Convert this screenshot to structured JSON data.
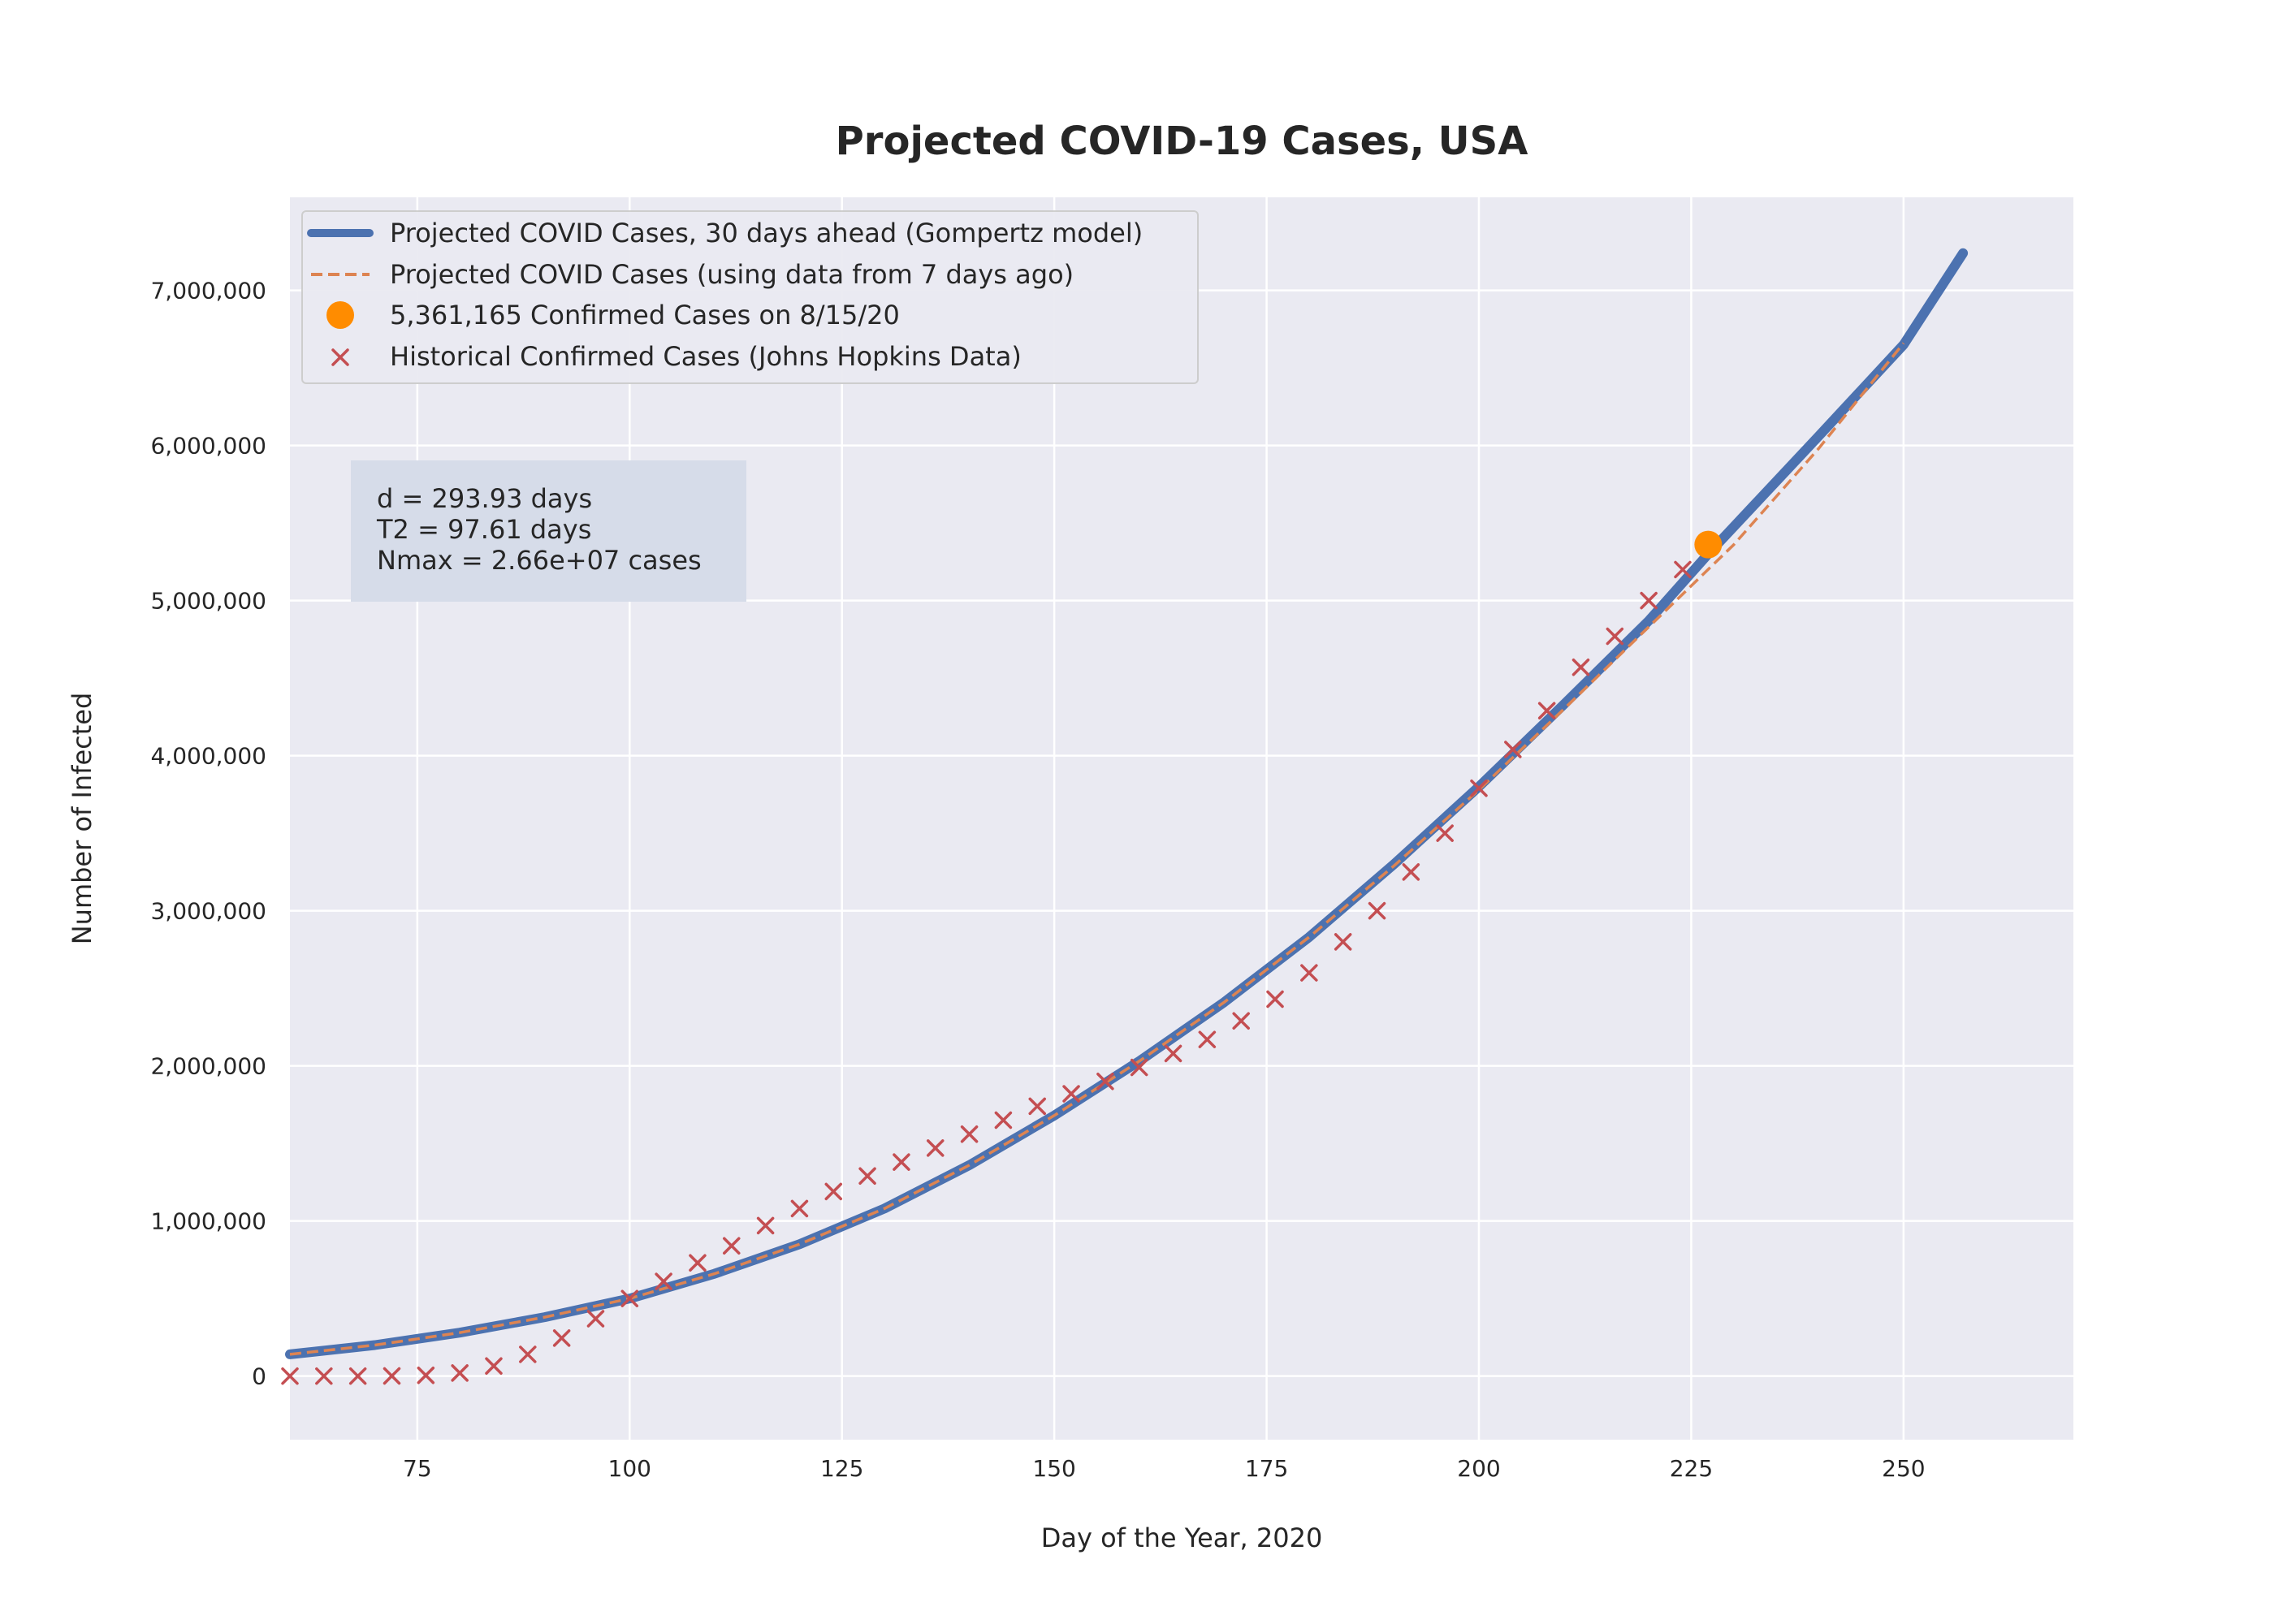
{
  "chart_data": {
    "type": "line",
    "title": "Projected COVID-19 Cases, USA",
    "xlabel": "Day of the Year, 2020",
    "ylabel": "Number of Infected",
    "xlim": [
      60,
      270
    ],
    "ylim": [
      -410000,
      7600000
    ],
    "x_ticks": [
      75,
      100,
      125,
      150,
      175,
      200,
      225,
      250
    ],
    "x_tick_labels": [
      "75",
      "100",
      "125",
      "150",
      "175",
      "200",
      "225",
      "250"
    ],
    "y_ticks": [
      0,
      1000000,
      2000000,
      3000000,
      4000000,
      5000000,
      6000000,
      7000000
    ],
    "y_tick_labels": [
      "0",
      "1,000,000",
      "2,000,000",
      "3,000,000",
      "4,000,000",
      "5,000,000",
      "6,000,000",
      "7,000,000"
    ],
    "grid": true,
    "legend_position": "top-left",
    "colors": {
      "background": "#eaeaf2",
      "grid": "#ffffff",
      "projection": "#4c72b0",
      "projection_old": "#dd8452",
      "current_point": "#ff8c00",
      "historical": "#c44e52",
      "stats_box": "#d6dce9"
    },
    "stats_box": {
      "lines": [
        "d = 293.93 days",
        "T2 = 97.61 days",
        "Nmax = 2.66e+07 cases"
      ]
    },
    "series": [
      {
        "name": "Projected COVID Cases, 30 days ahead (Gompertz model)",
        "kind": "line",
        "x": [
          60,
          70,
          80,
          90,
          100,
          110,
          120,
          130,
          140,
          150,
          160,
          170,
          180,
          190,
          200,
          210,
          220,
          227,
          240,
          250,
          257
        ],
        "y": [
          140000,
          200000,
          280000,
          380000,
          500000,
          660000,
          850000,
          1080000,
          1360000,
          1680000,
          2030000,
          2410000,
          2830000,
          3300000,
          3800000,
          4330000,
          4870000,
          5300000,
          6060000,
          6650000,
          7240000
        ]
      },
      {
        "name": "Projected COVID Cases (using data from 7 days ago)",
        "kind": "dashed-line",
        "x": [
          60,
          70,
          80,
          90,
          100,
          110,
          120,
          130,
          140,
          150,
          160,
          170,
          180,
          190,
          200,
          210,
          220,
          230,
          240,
          250
        ],
        "y": [
          140000,
          200000,
          280000,
          380000,
          500000,
          660000,
          850000,
          1080000,
          1360000,
          1680000,
          2030000,
          2410000,
          2830000,
          3290000,
          3780000,
          4300000,
          4830000,
          5360000,
          5980000,
          6660000
        ]
      },
      {
        "name": "5,361,165 Confirmed Cases on 8/15/20",
        "kind": "point",
        "x": [
          227
        ],
        "y": [
          5361165
        ]
      },
      {
        "name": "Historical Confirmed Cases (Johns Hopkins Data)",
        "kind": "scatter",
        "x": [
          60,
          64,
          68,
          72,
          76,
          80,
          84,
          88,
          92,
          96,
          100,
          104,
          108,
          112,
          116,
          120,
          124,
          128,
          132,
          136,
          140,
          144,
          148,
          152,
          156,
          160,
          164,
          168,
          172,
          176,
          180,
          184,
          188,
          192,
          196,
          200,
          204,
          208,
          212,
          216,
          220,
          224
        ],
        "y": [
          0,
          0,
          0,
          1000,
          5000,
          20000,
          65000,
          140000,
          245000,
          370000,
          500000,
          610000,
          730000,
          840000,
          970000,
          1080000,
          1190000,
          1290000,
          1380000,
          1470000,
          1560000,
          1650000,
          1740000,
          1820000,
          1900000,
          1990000,
          2080000,
          2170000,
          2290000,
          2430000,
          2600000,
          2800000,
          3000000,
          3250000,
          3500000,
          3790000,
          4040000,
          4290000,
          4570000,
          4770000,
          5000000,
          5200000
        ]
      }
    ]
  }
}
